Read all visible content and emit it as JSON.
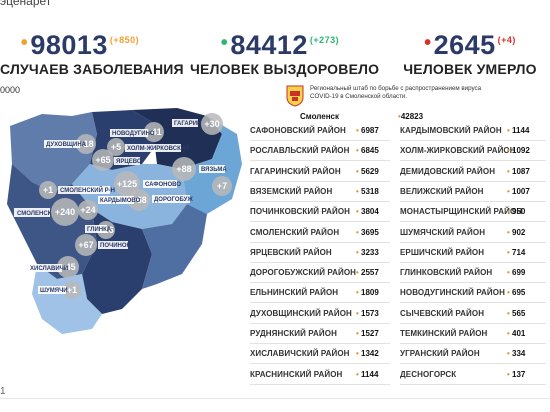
{
  "fragments": {
    "top": "эценарет",
    "zeros": "0000",
    "bottom": "1"
  },
  "stats": [
    {
      "number": "98013",
      "delta": "(+850)",
      "label": "СЛУЧАЕВ ЗАБОЛЕВАНИЯ",
      "dot_color": "#f0a030",
      "delta_color": "#f0a030"
    },
    {
      "number": "84412",
      "delta": "(+273)",
      "label": "ЧЕЛОВЕК ВЫЗДОРОВЕЛО",
      "dot_color": "#2bb673",
      "delta_color": "#2bb673"
    },
    {
      "number": "2645",
      "delta": "(+4)",
      "label": "ЧЕЛОВЕК УМЕРЛО",
      "dot_color": "#d9302a",
      "delta_color": "#d9302a"
    }
  ],
  "header": {
    "text": "Региональный штаб по борьбе с распространением вируса COVID-19 в Смоленской области.",
    "crest_icon": "smolensk-coat-of-arms-icon"
  },
  "smolensk": {
    "label": "Смоленск",
    "value": "42823"
  },
  "districts_left": [
    {
      "name": "САФОНОВСКИЙ РАЙОН",
      "value": "6987"
    },
    {
      "name": "РОСЛАВЛЬСКИЙ РАЙОН",
      "value": "6845"
    },
    {
      "name": "ГАГАРИНСКИЙ РАЙОН",
      "value": "5629"
    },
    {
      "name": "ВЯЗЕМСКИЙ РАЙОН",
      "value": "5318"
    },
    {
      "name": "ПОЧИНКОВСКИЙ РАЙОН",
      "value": "3804"
    },
    {
      "name": "СМОЛЕНСКИЙ РАЙОН",
      "value": "3695"
    },
    {
      "name": "ЯРЦЕВСКИЙ РАЙОН",
      "value": "3233"
    },
    {
      "name": "ДОРОГОБУЖСКИЙ РАЙОН",
      "value": "2557"
    },
    {
      "name": "ЕЛЬНИНСКИЙ РАЙОН",
      "value": "1809"
    },
    {
      "name": "ДУХОВЩИНСКИЙ РАЙОН",
      "value": "1573"
    },
    {
      "name": "РУДНЯНСКИЙ РАЙОН",
      "value": "1527"
    },
    {
      "name": "ХИСЛАВИЧСКИЙ РАЙОН",
      "value": "1342"
    },
    {
      "name": "КРАСНИНСКИЙ РАЙОН",
      "value": "1144"
    }
  ],
  "districts_right": [
    {
      "name": "КАРДЫМОВСКИЙ РАЙОН",
      "value": "1144"
    },
    {
      "name": "ХОЛМ-ЖИРКОВСКИЙ РАЙОН",
      "value": "1092"
    },
    {
      "name": "ДЕМИДОВСКИЙ РАЙОН",
      "value": "1087"
    },
    {
      "name": "ВЕЛИЖСКИЙ РАЙОН",
      "value": "1007"
    },
    {
      "name": "МОНАСТЫРЩИНСКИЙ РАЙОН",
      "value": "950"
    },
    {
      "name": "ШУМЯЧСКИЙ РАЙОН",
      "value": "902"
    },
    {
      "name": "ЕРШИЧСКИЙ РАЙОН",
      "value": "714"
    },
    {
      "name": "ГЛИНКОВСКИЙ РАЙОН",
      "value": "699"
    },
    {
      "name": "НОВОДУГИНСКИЙ РАЙОН",
      "value": "695"
    },
    {
      "name": "СЫЧЕВСКИЙ РАЙОН",
      "value": "565"
    },
    {
      "name": "ТЕМКИНСКИЙ РАЙОН",
      "value": "401"
    },
    {
      "name": "УГРАНСКИЙ РАЙОН",
      "value": "334"
    },
    {
      "name": "ДЕСНОГОРСК",
      "value": "137"
    }
  ],
  "map": {
    "labels": [
      "ГАГАРИН",
      "НОВОДУГИНО",
      "ДУХОВЩИНА",
      "ХОЛМ-ЖИРКОВСКИЙ",
      "ЯРЦЕВО",
      "ВЯЗЬМА",
      "САФОНОВО",
      "СМОЛЕНСКИЙ Р-Н",
      "КАРДЫМОВО",
      "ДОРОГОБУЖ",
      "СМОЛЕНСК",
      "ГЛИНКА",
      "ПОЧИНОК",
      "ХИСЛАВИЧИ",
      "ШУМЯЧИ"
    ],
    "bubbles": [
      "+30",
      "+41",
      "+18",
      "+5",
      "+65",
      "+88",
      "+125",
      "+7",
      "+1",
      "+68",
      "+240",
      "+24",
      "+16",
      "+67",
      "+45",
      "+1"
    ]
  }
}
